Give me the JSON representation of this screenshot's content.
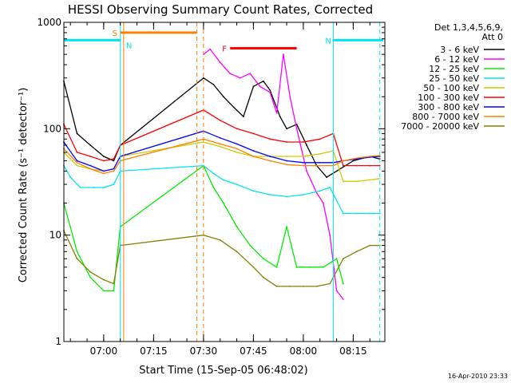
{
  "chart_data": {
    "type": "line",
    "title": "HESSI Observing Summary Count Rates, Corrected",
    "xlabel": "Start Time (15-Sep-05 06:48:02)",
    "ylabel": "Corrected Count Rate (s⁻¹ detector⁻¹)",
    "ylog": true,
    "ylim": [
      1,
      1000
    ],
    "xlim": [
      "06:48:02",
      "08:24:30"
    ],
    "x_tick_labels": [
      "07:00",
      "07:15",
      "07:30",
      "07:45",
      "08:00",
      "08:15"
    ],
    "y_tick_labels": [
      "1",
      "10",
      "100",
      "1000"
    ],
    "legend_header": [
      "Det 1,3,4,5,6,9,",
      "Att 0"
    ],
    "legend_position": "right",
    "footer": "16-Apr-2010 23:33",
    "flags": [
      {
        "label": "S",
        "start": "07:05",
        "end": "07:28",
        "level": 800,
        "color": "#ff8000"
      },
      {
        "label": "N",
        "start": "06:48",
        "end": "07:05",
        "level": 680,
        "color": "#00e5ee",
        "label_at": "07:06"
      },
      {
        "label": "N",
        "start": "08:09",
        "end": "08:24",
        "level": 680,
        "color": "#00e5ee"
      },
      {
        "label": "F",
        "start": "07:38",
        "end": "07:58",
        "level": 570,
        "color": "#ff0000"
      }
    ],
    "markers": [
      {
        "time": "07:05",
        "color": "#00e5ee",
        "style": "solid"
      },
      {
        "time": "07:06",
        "color": "#ff8000",
        "style": "solid"
      },
      {
        "time": "07:28",
        "color": "#ff8000",
        "style": "dashed"
      },
      {
        "time": "07:30",
        "color": "#ff8000",
        "style": "dashed"
      },
      {
        "time": "08:09",
        "color": "#00e5ee",
        "style": "solid"
      },
      {
        "time": "08:23",
        "color": "#00e5ee",
        "style": "dashed"
      }
    ],
    "series": [
      {
        "name": "3 - 6 keV",
        "color": "#000000",
        "x": [
          "06:48",
          "06:52",
          "06:56",
          "07:00",
          "07:03",
          "07:05",
          "07:30",
          "07:33",
          "07:36",
          "07:39",
          "07:42",
          "07:45",
          "07:48",
          "07:50",
          "07:53",
          "07:55",
          "07:58",
          "08:01",
          "08:04",
          "08:07",
          "08:10",
          "08:15",
          "08:20",
          "08:23"
        ],
        "values": [
          280,
          90,
          70,
          55,
          50,
          70,
          300,
          260,
          200,
          160,
          130,
          250,
          280,
          230,
          130,
          100,
          110,
          70,
          45,
          35,
          40,
          50,
          55,
          52
        ]
      },
      {
        "name": "6 - 12 keV",
        "color": "#ff00ff",
        "x": [
          "07:30",
          "07:32",
          "07:35",
          "07:38",
          "07:41",
          "07:44",
          "07:47",
          "07:50",
          "07:52",
          "07:54",
          "07:56",
          "07:58",
          "08:01",
          "08:04",
          "08:06",
          "08:08",
          "08:10",
          "08:12"
        ],
        "values": [
          500,
          560,
          420,
          330,
          300,
          330,
          250,
          220,
          140,
          500,
          200,
          100,
          40,
          25,
          20,
          10,
          3,
          2.5
        ]
      },
      {
        "name": "12 - 25 keV",
        "color": "#00ee00",
        "x": [
          "06:48",
          "06:52",
          "06:56",
          "07:00",
          "07:03",
          "07:05",
          "07:30",
          "07:33",
          "07:36",
          "07:40",
          "07:44",
          "07:48",
          "07:52",
          "07:55",
          "07:58",
          "08:02",
          "08:06",
          "08:10",
          "08:12"
        ],
        "values": [
          20,
          7,
          4,
          3,
          3,
          12,
          45,
          28,
          20,
          12,
          8,
          6,
          5,
          12,
          5,
          5,
          5,
          6,
          3.5
        ]
      },
      {
        "name": "25 - 50 keV",
        "color": "#00e5ee",
        "x": [
          "06:48",
          "06:50",
          "06:53",
          "06:57",
          "07:00",
          "07:03",
          "07:05",
          "07:30",
          "07:33",
          "07:36",
          "07:40",
          "07:45",
          "07:50",
          "07:55",
          "08:00",
          "08:05",
          "08:08",
          "08:12",
          "08:16",
          "08:20",
          "08:23"
        ],
        "values": [
          45,
          35,
          28,
          28,
          28,
          30,
          40,
          45,
          38,
          33,
          30,
          26,
          24,
          23,
          24,
          26,
          28,
          16,
          16,
          16,
          16
        ]
      },
      {
        "name": "50 - 100 keV",
        "color": "#cccc00",
        "x": [
          "06:48",
          "06:52",
          "06:56",
          "07:00",
          "07:03",
          "07:05",
          "07:30",
          "07:35",
          "07:40",
          "07:45",
          "07:50",
          "07:55",
          "08:00",
          "08:05",
          "08:09",
          "08:12",
          "08:16",
          "08:20",
          "08:23"
        ],
        "values": [
          60,
          45,
          42,
          40,
          42,
          55,
          75,
          68,
          60,
          55,
          55,
          55,
          55,
          58,
          62,
          32,
          32,
          33,
          34
        ]
      },
      {
        "name": "100 - 300 keV",
        "color": "#ff0000",
        "x": [
          "06:48",
          "06:52",
          "06:56",
          "07:00",
          "07:03",
          "07:05",
          "07:30",
          "07:35",
          "07:40",
          "07:45",
          "07:50",
          "07:55",
          "08:00",
          "08:05",
          "08:09",
          "08:12",
          "08:16",
          "08:20",
          "08:23"
        ],
        "values": [
          110,
          60,
          55,
          50,
          52,
          70,
          150,
          120,
          100,
          90,
          80,
          75,
          75,
          80,
          90,
          45,
          45,
          45,
          45
        ]
      },
      {
        "name": "300 - 800 keV",
        "color": "#0000ff",
        "x": [
          "06:48",
          "06:52",
          "06:56",
          "07:00",
          "07:03",
          "07:05",
          "07:30",
          "07:35",
          "07:40",
          "07:45",
          "07:50",
          "07:55",
          "08:00",
          "08:05",
          "08:09",
          "08:12",
          "08:16",
          "08:20",
          "08:23"
        ],
        "values": [
          75,
          50,
          45,
          40,
          42,
          55,
          95,
          82,
          72,
          62,
          55,
          50,
          48,
          48,
          48,
          50,
          52,
          54,
          55
        ]
      },
      {
        "name": "800 - 7000 keV",
        "color": "#ff8000",
        "x": [
          "06:48",
          "06:52",
          "06:56",
          "07:00",
          "07:03",
          "07:05",
          "07:30",
          "07:35",
          "07:40",
          "07:45",
          "07:50",
          "07:55",
          "08:00",
          "08:05",
          "08:09",
          "08:12",
          "08:16",
          "08:20",
          "08:23"
        ],
        "values": [
          65,
          48,
          42,
          38,
          40,
          50,
          80,
          72,
          65,
          55,
          50,
          46,
          45,
          45,
          45,
          50,
          53,
          55,
          56
        ]
      },
      {
        "name": "7000 - 20000 keV",
        "color": "#808000",
        "x": [
          "06:48",
          "06:52",
          "06:56",
          "07:00",
          "07:03",
          "07:05",
          "07:30",
          "07:35",
          "07:40",
          "07:45",
          "07:48",
          "07:52",
          "07:56",
          "08:00",
          "08:04",
          "08:08",
          "08:12",
          "08:16",
          "08:20",
          "08:23"
        ],
        "values": [
          11,
          6,
          4.5,
          3.8,
          3.5,
          8,
          10,
          9,
          7,
          5,
          4,
          3.3,
          3.3,
          3.3,
          3.3,
          3.5,
          6,
          7,
          8,
          8
        ]
      }
    ]
  }
}
